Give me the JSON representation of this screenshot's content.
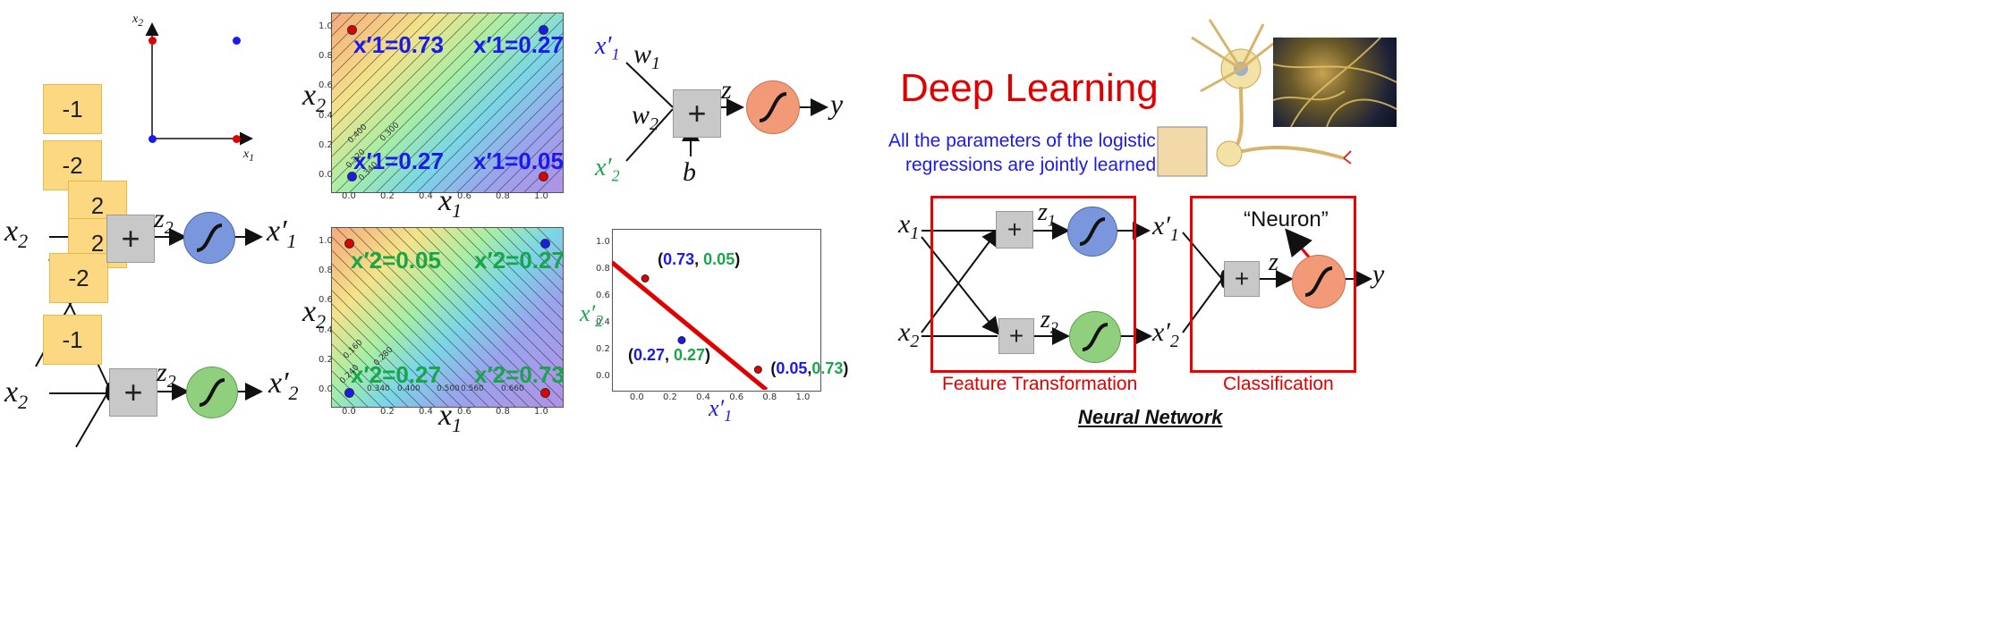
{
  "colors": {
    "blue": "#1a1aee",
    "green": "#19a64a",
    "red": "#e00000",
    "sigBlue": "#7a96dc",
    "sigGreen": "#8fcf7e",
    "sigOrange": "#f29a78",
    "weight": "#fdd882"
  },
  "left": {
    "inset": {
      "xlabel": "x",
      "xsub": "1",
      "ylabel": "x",
      "ysub": "2"
    },
    "weights": [
      "-1",
      "-2",
      "2",
      "2",
      "-2",
      "-1"
    ],
    "x2_top": "x",
    "x2_top_sub": "2",
    "x2_bot": "x",
    "x2_bot_sub": "2",
    "z_top": "z",
    "z_top_sub": "2",
    "z_bot": "z",
    "z_bot_sub": "2",
    "out_top": "x′",
    "out_top_sub": "1",
    "out_bot": "x′",
    "out_bot_sub": "2",
    "plus": "+"
  },
  "panel1": {
    "ylabel": "x",
    "ysub": "2",
    "xlabel": "x",
    "xsub": "1",
    "labels": [
      "x′1=0.73",
      "x′1=0.27",
      "x′1=0.27",
      "x′1=0.05"
    ],
    "xticks": [
      "0.0",
      "0.2",
      "0.4",
      "0.6",
      "0.8",
      "1.0"
    ],
    "yticks": [
      "1.0",
      "0.8",
      "0.6",
      "0.4",
      "0.2",
      "0.0"
    ],
    "contours": [
      "0.400",
      "0.300",
      "0.320",
      "0.340"
    ]
  },
  "panel2": {
    "ylabel": "x",
    "ysub": "2",
    "xlabel": "x",
    "xsub": "1",
    "labels": [
      "x′2=0.05",
      "x′2=0.27",
      "x′2=0.27",
      "x′2=0.73"
    ],
    "xticks": [
      "0.0",
      "0.2",
      "0.4",
      "0.6",
      "0.8",
      "1.0"
    ],
    "yticks": [
      "1.0",
      "0.8",
      "0.6",
      "0.4",
      "0.2",
      "0.0"
    ],
    "contours": [
      "0.160",
      "0.280",
      "0.240",
      "0.340",
      "0.400",
      "0.500",
      "0.560",
      "0.660"
    ]
  },
  "neuron": {
    "x1": "x′",
    "x1sub": "1",
    "x2": "x′",
    "x2sub": "2",
    "w1": "w",
    "w1sub": "1",
    "w2": "w",
    "w2sub": "2",
    "z": "z",
    "y": "y",
    "b": "b",
    "plus": "+"
  },
  "chart_data": {
    "type": "scatter",
    "xlabel": "x′1",
    "ylabel": "x′2",
    "xlim": [
      -0.15,
      1.1
    ],
    "ylim": [
      -0.1,
      1.1
    ],
    "xticks": [
      "0.0",
      "0.2",
      "0.4",
      "0.6",
      "0.8",
      "1.0"
    ],
    "yticks": [
      "1.0",
      "0.8",
      "0.6",
      "0.4",
      "0.2",
      "0.0"
    ],
    "points": [
      {
        "x": 0.05,
        "y": 0.73,
        "color": "red",
        "label_a": "0.73",
        "label_b": "0.05"
      },
      {
        "x": 0.27,
        "y": 0.27,
        "color": "blue",
        "label_a": "0.27",
        "label_b": "0.27"
      },
      {
        "x": 0.73,
        "y": 0.05,
        "color": "red",
        "label_a": "0.05",
        "label_b": "0.73"
      }
    ],
    "line": [
      [
        -0.15,
        0.85
      ],
      [
        0.78,
        -0.1
      ]
    ]
  },
  "right": {
    "title": "Deep Learning!",
    "subtitle1": "All the parameters of the logistic",
    "subtitle2": "regressions are jointly learned.",
    "neuron_quote": "“Neuron”",
    "feature_label": "Feature Transformation",
    "class_label": "Classification",
    "nn_label": "Neural Network",
    "x1": "x",
    "x1sub": "1",
    "x2": "x",
    "x2sub": "2",
    "z1": "z",
    "z1sub": "1",
    "z2": "z",
    "z2sub": "2",
    "o1": "x′",
    "o1sub": "1",
    "o2": "x′",
    "o2sub": "2",
    "z": "z",
    "y": "y",
    "plus": "+"
  }
}
